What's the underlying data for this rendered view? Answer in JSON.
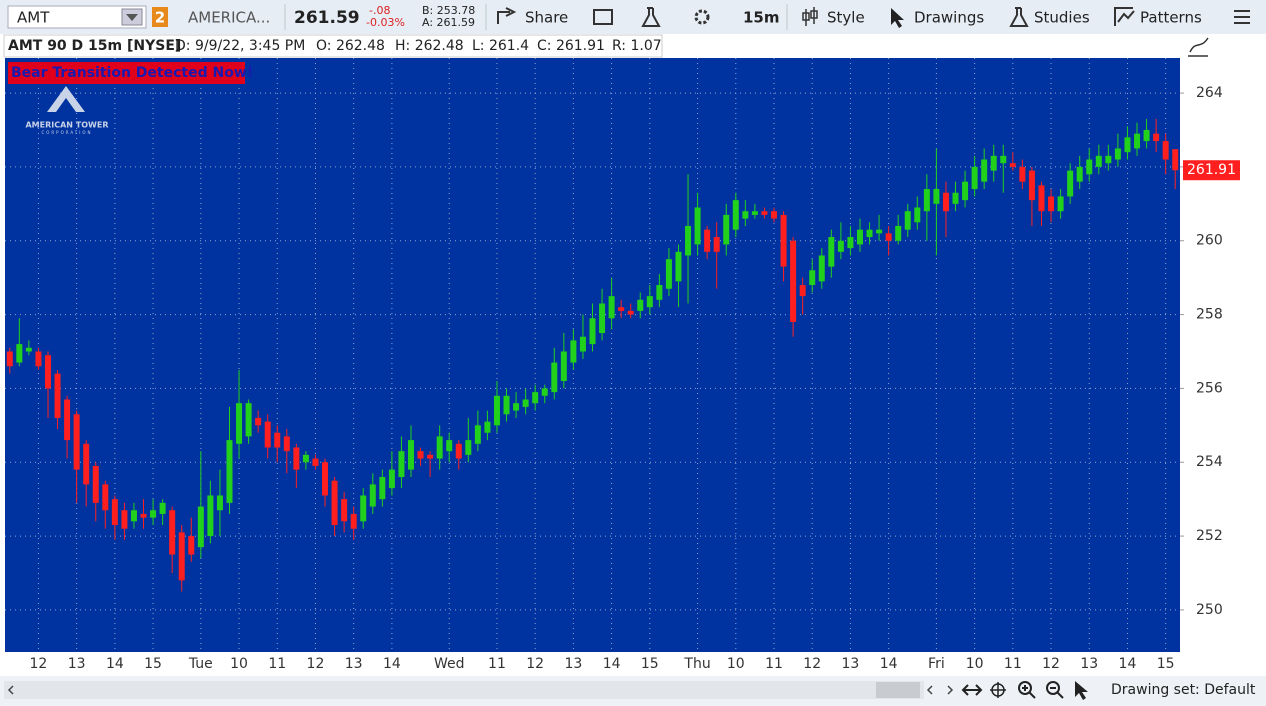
{
  "toolbar": {
    "symbol": "AMT",
    "link_number": "2",
    "company": "AMERICA...",
    "last": "261.59",
    "change": "-.08",
    "change_pct": "-0.03%",
    "bid": "B: 253.78",
    "ask": "A: 261.59",
    "share": "Share",
    "timeframe": "15m",
    "style": "Style",
    "drawings": "Drawings",
    "studies": "Studies",
    "patterns": "Patterns"
  },
  "header": {
    "title": "AMT 90 D 15m [NYSE]",
    "date": "D: 9/9/22, 3:45 PM",
    "open": "O: 262.48",
    "high": "H: 262.48",
    "low": "L: 261.4",
    "close": "C: 261.91",
    "range": "R: 1.07"
  },
  "alert": "Bear Transition Detected Now!",
  "logo": {
    "name": "AMERICAN TOWER",
    "sub": "CORPORATION"
  },
  "footer": {
    "drawing_set": "Drawing set: Default"
  },
  "chart_data": {
    "type": "candlestick",
    "background": "#0033a0",
    "up_color": "#21d11c",
    "down_color": "#ff1f1f",
    "grid": true,
    "ylim": [
      248.86,
      264.95
    ],
    "yticks": [
      250,
      252,
      254,
      256,
      258,
      260,
      262,
      264
    ],
    "categories": [
      null,
      null,
      null,
      "12",
      null,
      null,
      null,
      "13",
      null,
      null,
      null,
      "14",
      null,
      null,
      null,
      "15",
      null,
      null,
      null,
      null,
      "Tue",
      null,
      null,
      null,
      "10",
      null,
      null,
      null,
      "11",
      null,
      null,
      null,
      "12",
      null,
      null,
      null,
      "13",
      null,
      null,
      null,
      "14",
      null,
      null,
      null,
      null,
      null,
      "Wed",
      null,
      null,
      null,
      null,
      "11",
      null,
      null,
      null,
      "12",
      null,
      null,
      null,
      "13",
      null,
      null,
      null,
      "14",
      null,
      null,
      null,
      "15",
      null,
      null,
      null,
      null,
      "Thu",
      null,
      null,
      null,
      "10",
      null,
      null,
      null,
      "11",
      null,
      null,
      null,
      "12",
      null,
      null,
      null,
      "13",
      null,
      null,
      null,
      "14",
      null,
      null,
      null,
      null,
      "Fri",
      null,
      null,
      null,
      "10",
      null,
      null,
      null,
      "11",
      null,
      null,
      null,
      "12",
      null,
      null,
      null,
      "13",
      null,
      null,
      null,
      "14",
      null,
      null,
      null,
      "15",
      null
    ],
    "open": [
      257.0,
      256.7,
      257.0,
      257.0,
      256.9,
      256.4,
      255.7,
      255.3,
      254.5,
      253.9,
      253.4,
      253.0,
      252.7,
      252.4,
      252.6,
      252.5,
      252.6,
      252.7,
      252.1,
      252.0,
      251.7,
      252.0,
      252.7,
      252.9,
      254.5,
      254.7,
      255.2,
      255.1,
      254.8,
      254.7,
      254.4,
      254.0,
      254.1,
      254.0,
      253.5,
      253.0,
      252.6,
      252.4,
      252.8,
      253.0,
      253.3,
      253.6,
      253.8,
      254.3,
      254.2,
      254.1,
      254.3,
      254.5,
      254.2,
      254.5,
      254.8,
      255.0,
      255.3,
      255.4,
      255.5,
      255.6,
      255.8,
      255.9,
      256.2,
      256.7,
      257.0,
      257.2,
      257.5,
      257.9,
      258.2,
      258.1,
      258.1,
      258.2,
      258.4,
      258.7,
      258.9,
      259.6,
      259.9,
      260.3,
      260.1,
      259.9,
      260.3,
      260.6,
      260.7,
      260.8,
      260.8,
      260.7,
      260.0,
      258.8,
      258.8,
      258.9,
      259.3,
      259.7,
      259.8,
      259.9,
      260.1,
      260.2,
      260.2,
      260.0,
      260.3,
      260.5,
      260.8,
      261.0,
      261.3,
      261.0,
      261.1,
      261.4,
      261.6,
      261.9,
      262.1,
      262.1,
      262.0,
      261.9,
      261.5,
      261.2,
      260.8,
      261.2,
      261.6,
      261.8,
      262.0,
      262.1,
      262.2,
      262.4,
      262.5,
      262.7,
      262.9,
      262.7,
      262.48
    ],
    "high": [
      257.1,
      257.9,
      257.3,
      257.1,
      257.0,
      256.5,
      255.8,
      255.4,
      254.6,
      254.0,
      253.5,
      253.1,
      252.9,
      252.9,
      253.0,
      253.0,
      253.0,
      252.8,
      252.3,
      252.5,
      254.3,
      253.5,
      253.8,
      255.5,
      256.5,
      255.7,
      255.4,
      255.3,
      255.0,
      254.9,
      254.5,
      254.3,
      254.2,
      254.1,
      253.6,
      253.2,
      252.8,
      253.3,
      253.7,
      253.8,
      254.3,
      254.7,
      255.0,
      254.4,
      254.3,
      255.0,
      254.8,
      254.6,
      255.2,
      255.4,
      255.4,
      256.2,
      256.0,
      255.9,
      256.0,
      256.1,
      256.1,
      257.1,
      257.5,
      257.6,
      258.0,
      258.3,
      258.7,
      259.0,
      258.4,
      258.3,
      258.6,
      258.8,
      259.1,
      259.8,
      259.9,
      261.8,
      261.3,
      260.4,
      260.5,
      261.0,
      261.3,
      261.1,
      261.0,
      260.9,
      260.9,
      260.8,
      260.1,
      259.0,
      259.5,
      259.8,
      260.3,
      260.5,
      260.4,
      260.6,
      260.5,
      260.7,
      260.4,
      260.7,
      261.0,
      261.2,
      261.8,
      262.5,
      261.6,
      261.6,
      261.9,
      262.3,
      262.5,
      262.6,
      262.6,
      262.4,
      262.2,
      262.0,
      261.6,
      261.4,
      261.4,
      262.1,
      262.3,
      262.5,
      262.6,
      262.6,
      262.9,
      263.1,
      263.2,
      263.3,
      263.3,
      262.9,
      262.48
    ],
    "low": [
      256.4,
      256.6,
      256.9,
      256.5,
      255.2,
      254.9,
      254.1,
      252.9,
      252.8,
      252.4,
      252.2,
      251.9,
      251.9,
      252.2,
      252.2,
      252.3,
      252.3,
      251.0,
      250.5,
      251.3,
      251.4,
      251.8,
      252.0,
      252.6,
      254.1,
      254.5,
      254.8,
      254.1,
      254.0,
      253.7,
      253.3,
      253.8,
      253.8,
      252.8,
      252.0,
      252.1,
      251.9,
      252.2,
      252.6,
      252.8,
      253.1,
      253.3,
      253.6,
      253.9,
      253.6,
      253.8,
      254.0,
      253.8,
      254.0,
      254.3,
      254.6,
      254.8,
      255.1,
      255.2,
      255.3,
      255.4,
      255.6,
      255.7,
      256.0,
      256.5,
      256.8,
      257.0,
      257.3,
      257.6,
      257.9,
      257.9,
      257.9,
      258.0,
      258.2,
      258.5,
      258.2,
      258.3,
      259.6,
      259.5,
      258.7,
      259.6,
      260.1,
      260.4,
      260.6,
      260.6,
      260.5,
      258.9,
      257.4,
      258.0,
      258.6,
      258.7,
      259.0,
      259.5,
      259.6,
      259.7,
      259.9,
      260.0,
      259.6,
      259.9,
      260.1,
      260.3,
      260.0,
      259.6,
      260.1,
      260.8,
      260.9,
      261.2,
      261.4,
      261.6,
      261.3,
      261.9,
      261.4,
      260.4,
      260.4,
      260.5,
      260.6,
      261.0,
      261.4,
      261.6,
      261.8,
      261.9,
      262.0,
      262.2,
      262.3,
      262.5,
      262.4,
      261.8,
      261.4
    ],
    "close": [
      256.6,
      257.2,
      257.1,
      256.6,
      256.0,
      255.2,
      254.6,
      253.8,
      253.4,
      252.9,
      252.7,
      252.3,
      252.2,
      252.7,
      252.5,
      252.7,
      252.9,
      251.5,
      250.8,
      251.5,
      252.8,
      253.1,
      253.1,
      254.6,
      255.6,
      255.6,
      255.0,
      254.4,
      254.4,
      254.3,
      253.8,
      254.2,
      253.9,
      253.1,
      252.3,
      252.4,
      252.2,
      253.1,
      253.4,
      253.6,
      253.8,
      254.3,
      254.6,
      254.1,
      254.1,
      254.7,
      254.6,
      254.1,
      254.6,
      255.0,
      255.1,
      255.8,
      255.8,
      255.6,
      255.7,
      255.9,
      256.0,
      256.7,
      257.0,
      257.3,
      257.4,
      257.9,
      258.3,
      258.5,
      258.1,
      258.0,
      258.4,
      258.5,
      258.8,
      259.5,
      259.7,
      260.4,
      260.9,
      259.7,
      259.7,
      260.7,
      261.1,
      260.8,
      260.8,
      260.7,
      260.6,
      259.3,
      257.8,
      258.5,
      259.2,
      259.6,
      260.1,
      260.0,
      260.1,
      260.3,
      260.3,
      260.3,
      260.0,
      260.4,
      260.8,
      260.9,
      261.4,
      261.4,
      260.8,
      261.3,
      261.6,
      262.0,
      262.2,
      262.3,
      262.3,
      262.0,
      261.6,
      261.1,
      260.8,
      260.8,
      261.2,
      261.9,
      262.0,
      262.2,
      262.3,
      262.3,
      262.5,
      262.8,
      262.9,
      263.0,
      262.7,
      262.2,
      261.91
    ]
  }
}
